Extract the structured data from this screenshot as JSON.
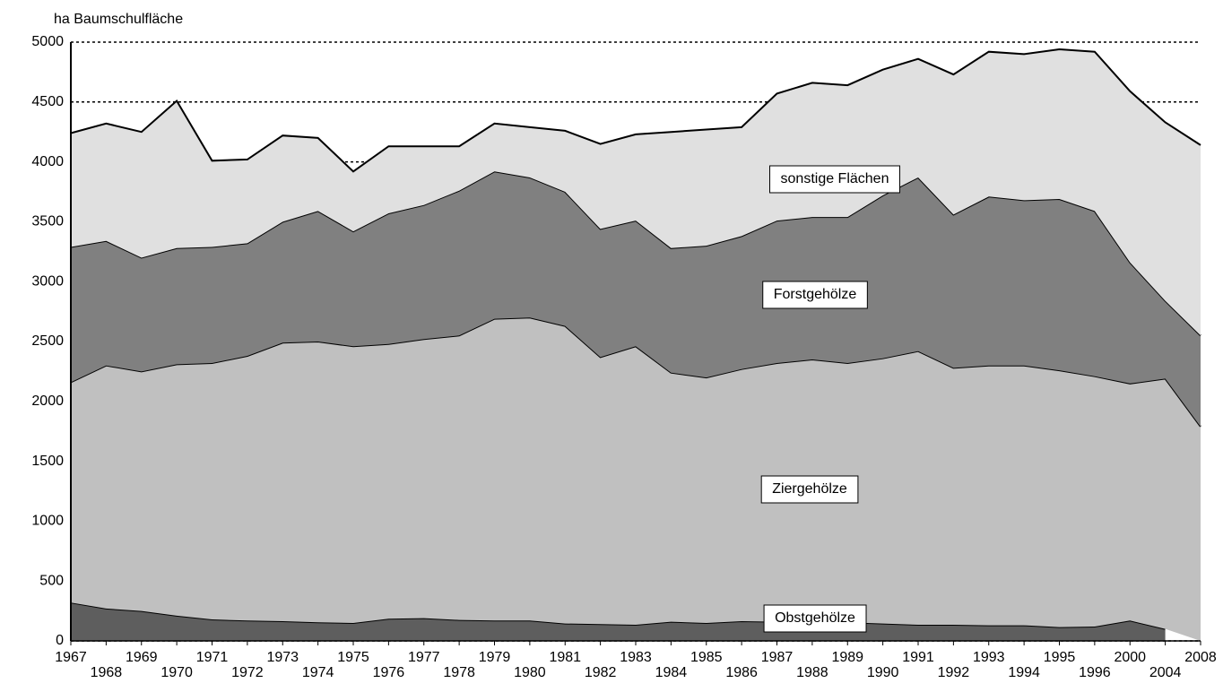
{
  "chart_data": {
    "type": "stacked-area",
    "y_axis_label": "ha Baumschulfläche",
    "categories": [
      "1967",
      "1968",
      "1969",
      "1970",
      "1971",
      "1972",
      "1973",
      "1974",
      "1975",
      "1976",
      "1977",
      "1978",
      "1979",
      "1980",
      "1981",
      "1982",
      "1983",
      "1984",
      "1985",
      "1986",
      "1987",
      "1988",
      "1989",
      "1990",
      "1991",
      "1992",
      "1993",
      "1994",
      "1995",
      "1996",
      "2000",
      "2004",
      "2008"
    ],
    "series": [
      {
        "name": "Obstgehölze",
        "color": "#5e5e5e",
        "values": [
          320,
          270,
          250,
          210,
          180,
          170,
          165,
          155,
          150,
          185,
          190,
          175,
          170,
          170,
          145,
          140,
          135,
          160,
          150,
          165,
          160,
          160,
          155,
          145,
          135,
          135,
          130,
          130,
          115,
          120,
          170,
          100,
          null
        ]
      },
      {
        "name": "Ziergehölze",
        "color": "#c0c0c0",
        "values": [
          1840,
          2030,
          2000,
          2100,
          2140,
          2210,
          2325,
          2345,
          2310,
          2295,
          2330,
          2375,
          2520,
          2530,
          2485,
          2230,
          2325,
          2080,
          2050,
          2105,
          2160,
          2190,
          2165,
          2215,
          2285,
          2145,
          2170,
          2170,
          2145,
          2090,
          1980,
          2090,
          1790
        ]
      },
      {
        "name": "Forstgehölze",
        "color": "#808080",
        "values": [
          1130,
          1040,
          950,
          970,
          970,
          940,
          1010,
          1090,
          960,
          1090,
          1120,
          1210,
          1230,
          1170,
          1120,
          1070,
          1050,
          1040,
          1100,
          1110,
          1190,
          1190,
          1220,
          1360,
          1450,
          1280,
          1410,
          1380,
          1430,
          1380,
          1010,
          650,
          760
        ]
      },
      {
        "name": "sonstige Flächen",
        "color": "#e0e0e0",
        "values": [
          950,
          980,
          1050,
          1230,
          720,
          700,
          720,
          610,
          500,
          560,
          490,
          370,
          400,
          420,
          510,
          710,
          720,
          970,
          970,
          910,
          1060,
          1120,
          1100,
          1050,
          990,
          1170,
          1210,
          1220,
          1250,
          1330,
          1430,
          1490,
          1590
        ]
      }
    ],
    "ylim": [
      0,
      5000
    ],
    "yticks": [
      0,
      500,
      1000,
      1500,
      2000,
      2500,
      3000,
      3500,
      4000,
      4500,
      5000
    ],
    "grid": true
  }
}
